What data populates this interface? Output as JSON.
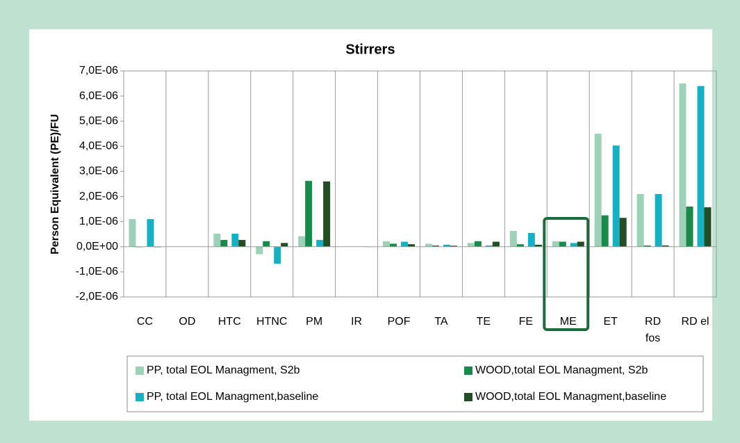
{
  "chart_data": {
    "type": "bar",
    "title": "Stirrers",
    "ylabel": "Person Equivalent (PE)/FU",
    "categories": [
      "CC",
      "OD",
      "HTC",
      "HTNC",
      "PM",
      "IR",
      "POF",
      "TA",
      "TE",
      "FE",
      "ME",
      "ET",
      "RD fos",
      "RD el"
    ],
    "series": [
      {
        "name": "PP, total EOL Managment, S2b",
        "color": "#9fd0b8",
        "values": [
          1.1e-06,
          0,
          5.2e-07,
          -3e-07,
          4.2e-07,
          0,
          2.2e-07,
          1.2e-07,
          1.5e-07,
          6.3e-07,
          2.2e-07,
          4.5e-06,
          2.1e-06,
          6.5e-06
        ]
      },
      {
        "name": "WOOD,total  EOL Managment, S2b",
        "color": "#1a8a4c",
        "values": [
          -2e-08,
          0,
          2.7e-07,
          2.2e-07,
          2.62e-06,
          0,
          1.2e-07,
          5e-08,
          2.2e-07,
          1e-07,
          2e-07,
          1.25e-06,
          5e-08,
          1.6e-06
        ]
      },
      {
        "name": "PP, total EOL Managment,baseline",
        "color": "#16b0c2",
        "values": [
          1.1e-06,
          0,
          5.2e-07,
          -6.8e-07,
          2.7e-07,
          0,
          2e-07,
          8e-08,
          5e-08,
          5.5e-07,
          1.5e-07,
          4.03e-06,
          2.1e-06,
          6.4e-06
        ]
      },
      {
        "name": "WOOD,total  EOL Managment,baseline",
        "color": "#234d25",
        "values": [
          -2e-08,
          0,
          2.7e-07,
          1.5e-07,
          2.6e-06,
          -1e-08,
          1e-07,
          4e-08,
          2e-07,
          8e-08,
          2e-07,
          1.15e-06,
          5e-08,
          1.57e-06
        ]
      }
    ],
    "ylim": [
      -2e-06,
      7e-06
    ],
    "yticks": [
      {
        "value": -2e-06,
        "label": "-2,0E-06"
      },
      {
        "value": -1e-06,
        "label": "-1,0E-06"
      },
      {
        "value": 0,
        "label": "0,0E+00"
      },
      {
        "value": 1e-06,
        "label": "1,0E-06"
      },
      {
        "value": 2e-06,
        "label": "2,0E-06"
      },
      {
        "value": 3e-06,
        "label": "3,0E-06"
      },
      {
        "value": 4e-06,
        "label": "4,0E-06"
      },
      {
        "value": 5e-06,
        "label": "5,0E-06"
      },
      {
        "value": 6e-06,
        "label": "6,0E-06"
      },
      {
        "value": 7e-06,
        "label": "7,0E-06"
      }
    ],
    "grid": "category"
  }
}
